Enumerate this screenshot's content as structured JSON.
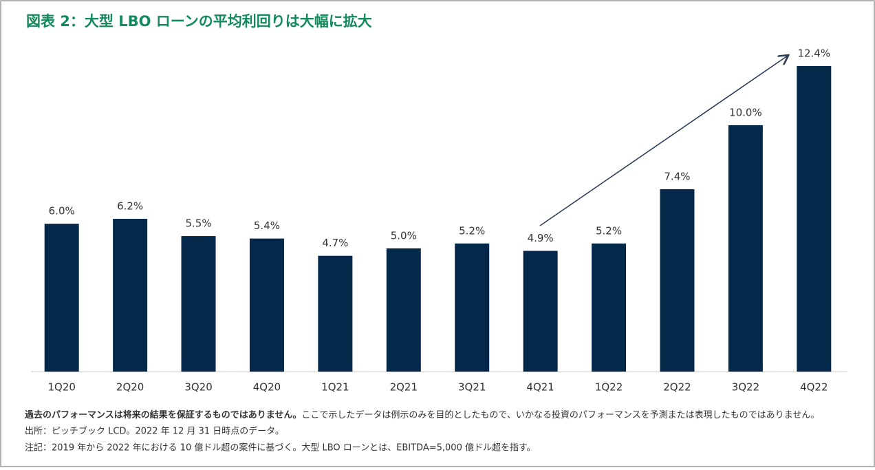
{
  "chart_data": {
    "type": "bar",
    "title": "図表 2：大型 LBO ローンの平均利回りは大幅に拡大",
    "categories": [
      "1Q20",
      "2Q20",
      "3Q20",
      "4Q20",
      "1Q21",
      "2Q21",
      "3Q21",
      "4Q21",
      "1Q22",
      "2Q22",
      "3Q22",
      "4Q22"
    ],
    "values": [
      6.0,
      6.2,
      5.5,
      5.4,
      4.7,
      5.0,
      5.2,
      4.9,
      5.2,
      7.4,
      10.0,
      12.4
    ],
    "value_labels": [
      "6.0%",
      "6.2%",
      "5.5%",
      "5.4%",
      "4.7%",
      "5.0%",
      "5.2%",
      "4.9%",
      "5.2%",
      "7.4%",
      "10.0%",
      "12.4%"
    ],
    "color": "#03284a",
    "footnote_bold": "過去のパフォーマンスは将来の結果を保証するものではありません。",
    "footnote": "ここで示したデータは例示のみを目的としたもので、いかなる投資のパフォーマンスを予測または表現したものではありません。",
    "source": "出所：ピッチブック LCD。2022 年 12 月 31 日時点のデータ。",
    "note": "注記：2019 年から 2022 年における 10 億ドル超の案件に基づく。大型 LBO ローンとは、EBITDA=5,000 億ドル超を指す。"
  }
}
